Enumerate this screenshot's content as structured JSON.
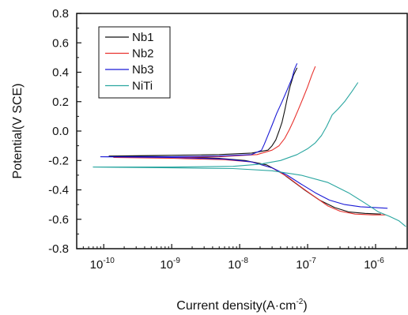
{
  "chart_data": {
    "type": "line",
    "title": "",
    "xlabel": "Current density(A·cm",
    "xlabel_sup": "-2",
    "xlabel_close": ")",
    "ylabel": "Potential(V SCE)",
    "x_scale": "log",
    "xlim": [
      4e-11,
      3e-06
    ],
    "ylim": [
      -0.8,
      0.8
    ],
    "x_ticks": [
      {
        "value": 1e-10,
        "base": "10",
        "exp": "-10"
      },
      {
        "value": 1e-09,
        "base": "10",
        "exp": "-9"
      },
      {
        "value": 1e-08,
        "base": "10",
        "exp": "-8"
      },
      {
        "value": 1e-07,
        "base": "10",
        "exp": "-7"
      },
      {
        "value": 1e-06,
        "base": "10",
        "exp": "-6"
      }
    ],
    "y_ticks": [
      "-0.8",
      "-0.6",
      "-0.4",
      "-0.2",
      "0.0",
      "0.2",
      "0.4",
      "0.6",
      "0.8"
    ],
    "grid": false,
    "legend_position": "top-left",
    "series": [
      {
        "name": "Nb1",
        "color": "#111111",
        "points": [
          [
            7e-08,
            0.43
          ],
          [
            6.2e-08,
            0.38
          ],
          [
            5.5e-08,
            0.3
          ],
          [
            5e-08,
            0.22
          ],
          [
            4.6e-08,
            0.14
          ],
          [
            4.2e-08,
            0.06
          ],
          [
            3.8e-08,
            0.0
          ],
          [
            3.4e-08,
            -0.06
          ],
          [
            3e-08,
            -0.1
          ],
          [
            2.6e-08,
            -0.13
          ],
          [
            1.5e-08,
            -0.15
          ],
          [
            5e-09,
            -0.16
          ],
          [
            1e-09,
            -0.165
          ],
          [
            1.2e-10,
            -0.17
          ],
          [
            1e-09,
            -0.175
          ],
          [
            5e-09,
            -0.185
          ],
          [
            1.2e-08,
            -0.2
          ],
          [
            2.5e-08,
            -0.23
          ],
          [
            4e-08,
            -0.28
          ],
          [
            6e-08,
            -0.34
          ],
          [
            9e-08,
            -0.4
          ],
          [
            1.5e-07,
            -0.47
          ],
          [
            2.5e-07,
            -0.52
          ],
          [
            4e-07,
            -0.55
          ],
          [
            7e-07,
            -0.56
          ],
          [
            1.2e-06,
            -0.565
          ]
        ]
      },
      {
        "name": "Nb2",
        "color": "#e8332f",
        "points": [
          [
            1.3e-07,
            0.44
          ],
          [
            1.15e-07,
            0.38
          ],
          [
            1e-07,
            0.3
          ],
          [
            8.5e-08,
            0.22
          ],
          [
            7.2e-08,
            0.14
          ],
          [
            6.2e-08,
            0.07
          ],
          [
            5.4e-08,
            0.01
          ],
          [
            4.6e-08,
            -0.05
          ],
          [
            3.8e-08,
            -0.1
          ],
          [
            3e-08,
            -0.13
          ],
          [
            1.8e-08,
            -0.16
          ],
          [
            5e-09,
            -0.175
          ],
          [
            1e-09,
            -0.18
          ],
          [
            1.4e-10,
            -0.18
          ],
          [
            1e-09,
            -0.185
          ],
          [
            6e-09,
            -0.195
          ],
          [
            1.5e-08,
            -0.21
          ],
          [
            3e-08,
            -0.25
          ],
          [
            5e-08,
            -0.31
          ],
          [
            8e-08,
            -0.38
          ],
          [
            1.3e-07,
            -0.45
          ],
          [
            2e-07,
            -0.51
          ],
          [
            3e-07,
            -0.545
          ],
          [
            5e-07,
            -0.565
          ],
          [
            9e-07,
            -0.57
          ],
          [
            1.4e-06,
            -0.57
          ]
        ]
      },
      {
        "name": "Nb3",
        "color": "#1a1ad6",
        "points": [
          [
            7e-08,
            0.46
          ],
          [
            6.4e-08,
            0.42
          ],
          [
            5.9e-08,
            0.36
          ],
          [
            5e-08,
            0.28
          ],
          [
            4.2e-08,
            0.2
          ],
          [
            3.5e-08,
            0.12
          ],
          [
            3e-08,
            0.04
          ],
          [
            2.6e-08,
            -0.03
          ],
          [
            2.3e-08,
            -0.09
          ],
          [
            2.1e-08,
            -0.13
          ],
          [
            1.5e-08,
            -0.16
          ],
          [
            5e-09,
            -0.17
          ],
          [
            1e-09,
            -0.175
          ],
          [
            9e-11,
            -0.175
          ],
          [
            1e-09,
            -0.18
          ],
          [
            6e-09,
            -0.19
          ],
          [
            1.5e-08,
            -0.21
          ],
          [
            3e-08,
            -0.25
          ],
          [
            5e-08,
            -0.3
          ],
          [
            8e-08,
            -0.36
          ],
          [
            1.3e-07,
            -0.42
          ],
          [
            2.1e-07,
            -0.47
          ],
          [
            3.5e-07,
            -0.5
          ],
          [
            6e-07,
            -0.515
          ],
          [
            1e-06,
            -0.52
          ],
          [
            1.5e-06,
            -0.525
          ]
        ]
      },
      {
        "name": "NiTi",
        "color": "#2aa6a0",
        "points": [
          [
            5.5e-07,
            0.33
          ],
          [
            4.5e-07,
            0.27
          ],
          [
            3.5e-07,
            0.2
          ],
          [
            2.8e-07,
            0.15
          ],
          [
            2.3e-07,
            0.11
          ],
          [
            1.9e-07,
            0.03
          ],
          [
            1.6e-07,
            -0.03
          ],
          [
            1.3e-07,
            -0.08
          ],
          [
            1e-07,
            -0.12
          ],
          [
            7e-08,
            -0.16
          ],
          [
            4e-08,
            -0.2
          ],
          [
            2e-08,
            -0.225
          ],
          [
            8e-09,
            -0.24
          ],
          [
            1e-09,
            -0.245
          ],
          [
            7e-11,
            -0.245
          ],
          [
            1e-09,
            -0.25
          ],
          [
            8e-09,
            -0.255
          ],
          [
            3e-08,
            -0.27
          ],
          [
            8e-08,
            -0.3
          ],
          [
            2e-07,
            -0.35
          ],
          [
            4e-07,
            -0.42
          ],
          [
            7e-07,
            -0.49
          ],
          [
            1.1e-06,
            -0.55
          ],
          [
            1.6e-06,
            -0.58
          ],
          [
            2.2e-06,
            -0.61
          ],
          [
            2.8e-06,
            -0.65
          ]
        ]
      }
    ]
  }
}
